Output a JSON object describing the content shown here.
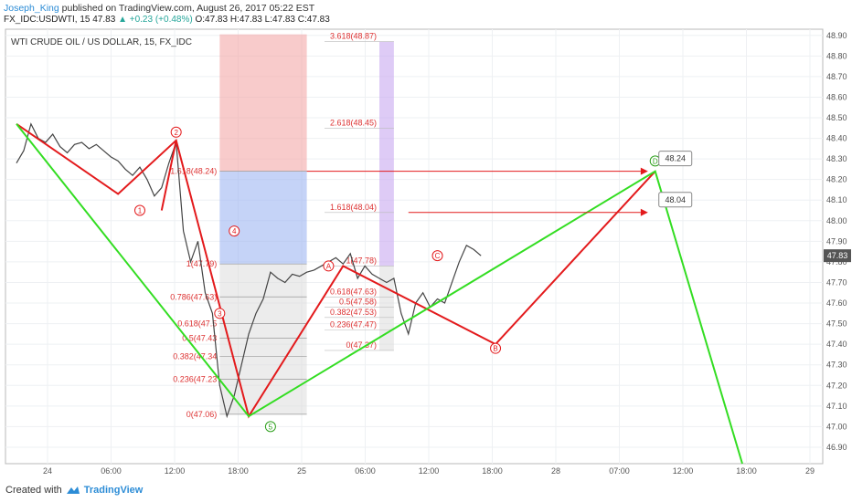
{
  "header": {
    "author": "Joseph_King",
    "published": "published on TradingView.com, August 26, 2017 05:22 EST",
    "symbol_line": "FX_IDC:USDWTI, 15",
    "last": "47.83",
    "change": "+0.23 (+0.48%)",
    "ohlc": "O:47.83 H:47.83 L:47.83 C:47.83"
  },
  "footer": {
    "created_with": "Created with",
    "brand": "TradingView"
  },
  "colors": {
    "red": "#e31a1c",
    "green": "#33dd22",
    "price_bar": "#444444",
    "fib_red": "#f4a9a9",
    "fib_blue": "#9fb6f2",
    "fib_purple": "#c8a8f0",
    "fib_gray": "#d9d9d9"
  },
  "chart_data": {
    "type": "candlestick",
    "title": "WTI CRUDE OIL / US DOLLAR, 15, FX_IDC",
    "ylim": [
      46.82,
      48.93
    ],
    "y_ticks": [
      48.9,
      48.8,
      48.7,
      48.6,
      48.5,
      48.4,
      48.3,
      48.2,
      48.1,
      48.0,
      47.9,
      47.8,
      47.7,
      47.6,
      47.5,
      47.4,
      47.3,
      47.2,
      47.1,
      47.0,
      46.9
    ],
    "x_ticks": [
      "24",
      "06:00",
      "12:00",
      "18:00",
      "25",
      "06:00",
      "12:00",
      "18:00",
      "28",
      "07:00",
      "12:00",
      "18:00",
      "29"
    ],
    "last_price_label": "47.83",
    "price_path": [
      [
        0,
        48.28
      ],
      [
        1,
        48.34
      ],
      [
        2,
        48.47
      ],
      [
        3,
        48.4
      ],
      [
        4,
        48.38
      ],
      [
        5,
        48.42
      ],
      [
        6,
        48.36
      ],
      [
        7,
        48.33
      ],
      [
        8,
        48.37
      ],
      [
        9,
        48.38
      ],
      [
        10,
        48.35
      ],
      [
        11,
        48.37
      ],
      [
        12,
        48.34
      ],
      [
        13,
        48.31
      ],
      [
        14,
        48.29
      ],
      [
        15,
        48.25
      ],
      [
        16,
        48.22
      ],
      [
        17,
        48.26
      ],
      [
        18,
        48.2
      ],
      [
        19,
        48.12
      ],
      [
        20,
        48.16
      ],
      [
        21,
        48.28
      ],
      [
        22,
        48.38
      ],
      [
        23,
        47.95
      ],
      [
        24,
        47.8
      ],
      [
        25,
        47.9
      ],
      [
        26,
        47.65
      ],
      [
        27,
        47.55
      ],
      [
        28,
        47.2
      ],
      [
        29,
        47.05
      ],
      [
        30,
        47.15
      ],
      [
        31,
        47.3
      ],
      [
        32,
        47.45
      ],
      [
        33,
        47.55
      ],
      [
        34,
        47.62
      ],
      [
        35,
        47.75
      ],
      [
        36,
        47.72
      ],
      [
        37,
        47.7
      ],
      [
        38,
        47.74
      ],
      [
        39,
        47.73
      ],
      [
        40,
        47.75
      ],
      [
        41,
        47.76
      ],
      [
        42,
        47.78
      ],
      [
        43,
        47.8
      ],
      [
        44,
        47.82
      ],
      [
        45,
        47.79
      ],
      [
        46,
        47.84
      ],
      [
        47,
        47.72
      ],
      [
        48,
        47.78
      ],
      [
        49,
        47.74
      ],
      [
        50,
        47.72
      ],
      [
        51,
        47.7
      ],
      [
        52,
        47.72
      ],
      [
        53,
        47.55
      ],
      [
        54,
        47.45
      ],
      [
        55,
        47.6
      ],
      [
        56,
        47.65
      ],
      [
        57,
        47.58
      ],
      [
        58,
        47.62
      ],
      [
        59,
        47.6
      ],
      [
        60,
        47.7
      ],
      [
        61,
        47.8
      ],
      [
        62,
        47.88
      ],
      [
        63,
        47.86
      ],
      [
        64,
        47.83
      ]
    ],
    "pattern_lines": [
      {
        "color": "red",
        "points": [
          [
            0,
            48.47
          ],
          [
            14,
            48.13
          ],
          [
            22,
            48.39
          ],
          [
            32,
            47.05
          ],
          [
            45,
            47.78
          ],
          [
            66,
            47.4
          ],
          [
            88,
            48.24
          ]
        ]
      },
      {
        "color": "green",
        "points": [
          [
            0,
            48.47
          ],
          [
            32,
            47.05
          ],
          [
            88,
            48.24
          ],
          [
            100,
            46.82
          ]
        ]
      },
      {
        "color": "red",
        "points": [
          [
            22,
            48.39
          ],
          [
            20,
            48.05
          ]
        ]
      }
    ],
    "wave_labels": [
      {
        "text": "1",
        "x": 17,
        "y": 48.05,
        "color": "red"
      },
      {
        "text": "2",
        "x": 22,
        "y": 48.43,
        "color": "red"
      },
      {
        "text": "3",
        "x": 28,
        "y": 47.55,
        "color": "red"
      },
      {
        "text": "4",
        "x": 30,
        "y": 47.95,
        "color": "red"
      },
      {
        "text": "5",
        "x": 35,
        "y": 47.0,
        "color": "green"
      },
      {
        "text": "A",
        "x": 43,
        "y": 47.78,
        "color": "red"
      },
      {
        "text": "B",
        "x": 66,
        "y": 47.38,
        "color": "red"
      },
      {
        "text": "C",
        "x": 58,
        "y": 47.83,
        "color": "red"
      },
      {
        "text": "D",
        "x": 88,
        "y": 48.29,
        "color": "green"
      }
    ],
    "fib_levels_left": [
      {
        "label": "1.618(48.24)",
        "value": 48.24
      },
      {
        "label": "1(47.79)",
        "value": 47.79
      },
      {
        "label": "0.786(47.63)",
        "value": 47.63
      },
      {
        "label": "0.618(47.5",
        "value": 47.5
      },
      {
        "label": "0.5(47.43",
        "value": 47.43
      },
      {
        "label": "0.382(47.34",
        "value": 47.34
      },
      {
        "label": "0.236(47.23",
        "value": 47.23
      },
      {
        "label": "0(47.06)",
        "value": 47.06
      }
    ],
    "fib_levels_right": [
      {
        "label": "3.618(48.87)",
        "value": 48.87
      },
      {
        "label": "2.618(48.45)",
        "value": 48.45
      },
      {
        "label": "1.618(48.04)",
        "value": 48.04
      },
      {
        "label": "1(47.78)",
        "value": 47.78
      },
      {
        "label": "0.618(47.63)",
        "value": 47.63
      },
      {
        "label": "0.5(47.58)",
        "value": 47.58
      },
      {
        "label": "0.382(47.53)",
        "value": 47.53
      },
      {
        "label": "0.236(47.47)",
        "value": 47.47
      },
      {
        "label": "0(47.37)",
        "value": 47.37
      }
    ],
    "targets": [
      {
        "label": "48.24",
        "value": 48.24
      },
      {
        "label": "48.04",
        "value": 48.04
      }
    ]
  }
}
